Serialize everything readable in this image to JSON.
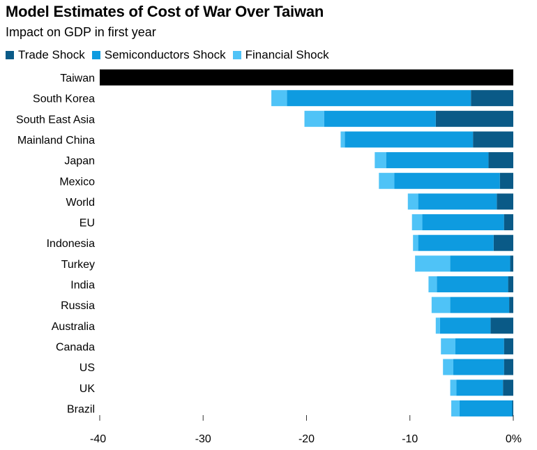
{
  "chart_data": {
    "type": "bar",
    "orientation": "horizontal",
    "stacked": true,
    "title": "Model Estimates of Cost of War Over Taiwan",
    "subtitle": "Impact on GDP in first year",
    "categories": [
      "Taiwan",
      "South Korea",
      "South East Asia",
      "Mainland China",
      "Japan",
      "Mexico",
      "World",
      "EU",
      "Indonesia",
      "Turkey",
      "India",
      "Russia",
      "Australia",
      "Canada",
      "US",
      "UK",
      "Brazil"
    ],
    "series": [
      {
        "name": "Trade Shock",
        "color": "#0a5a87",
        "values": [
          0,
          -4.1,
          -7.5,
          -3.9,
          -2.4,
          -1.3,
          -1.6,
          -0.9,
          -1.9,
          -0.3,
          -0.5,
          -0.4,
          -2.2,
          -0.9,
          -0.9,
          -1.0,
          -0.1
        ]
      },
      {
        "name": "Semiconductors Shock",
        "color": "#0e9be0",
        "values": [
          0,
          -17.8,
          -10.8,
          -12.4,
          -9.9,
          -10.2,
          -7.6,
          -7.9,
          -7.3,
          -5.8,
          -6.9,
          -5.7,
          -4.9,
          -4.7,
          -4.9,
          -4.5,
          -5.1
        ]
      },
      {
        "name": "Financial Shock",
        "color": "#4fc3f7",
        "values": [
          0,
          -1.5,
          -1.9,
          -0.4,
          -1.1,
          -1.5,
          -1.0,
          -1.0,
          -0.5,
          -3.4,
          -0.8,
          -1.8,
          -0.4,
          -1.4,
          -1.0,
          -0.6,
          -0.8
        ]
      }
    ],
    "highlight": {
      "category": "Taiwan",
      "value": -40,
      "color": "#000000"
    },
    "xlim": [
      -40,
      0
    ],
    "xticks": [
      "-40",
      "-30",
      "-20",
      "-10",
      "0%"
    ],
    "xtick_values": [
      -40,
      -30,
      -20,
      -10,
      0
    ],
    "grid": false
  }
}
